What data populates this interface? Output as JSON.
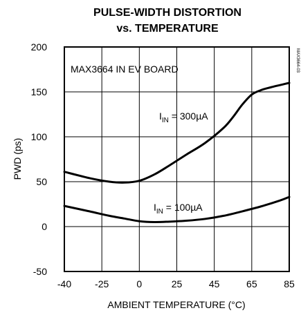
{
  "chart_data": {
    "type": "line",
    "title_line1": "PULSE-WIDTH DISTORTION",
    "title_line2": "vs. TEMPERATURE",
    "xlabel": "AMBIENT TEMPERATURE (°C)",
    "ylabel": "PWD (ps)",
    "xlim": [
      -40,
      85
    ],
    "ylim": [
      -50,
      200
    ],
    "x_ticks": [
      -40,
      -25,
      0,
      25,
      45,
      65,
      85
    ],
    "x_tick_labels": [
      "-40",
      "-25",
      "0",
      "25",
      "45",
      "65",
      "85"
    ],
    "y_ticks": [
      -50,
      0,
      50,
      100,
      150,
      200
    ],
    "y_tick_labels": [
      "-50",
      "0",
      "50",
      "100",
      "150",
      "200"
    ],
    "grid": true,
    "board_label": "MAX3664 IN EV BOARD",
    "code_label": "MAX3664-03",
    "series": [
      {
        "name_main": "I",
        "name_sub": "IN",
        "name_rest": " = 300µA",
        "x": [
          -40,
          -30,
          -20,
          -10,
          0,
          10,
          20,
          30,
          40,
          50,
          55,
          60,
          65,
          70,
          75,
          85
        ],
        "y": [
          61,
          54,
          50,
          49,
          51,
          58,
          68,
          80,
          93,
          110,
          122,
          136,
          147,
          152,
          155,
          160
        ]
      },
      {
        "name_main": "I",
        "name_sub": "IN",
        "name_rest": " = 100µA",
        "x": [
          -40,
          -30,
          -20,
          -10,
          0,
          10,
          20,
          30,
          40,
          50,
          60,
          70,
          80,
          85
        ],
        "y": [
          23,
          17,
          12,
          9,
          6,
          5,
          5.5,
          6.5,
          8.5,
          12,
          17,
          22.5,
          29,
          33
        ]
      }
    ]
  }
}
